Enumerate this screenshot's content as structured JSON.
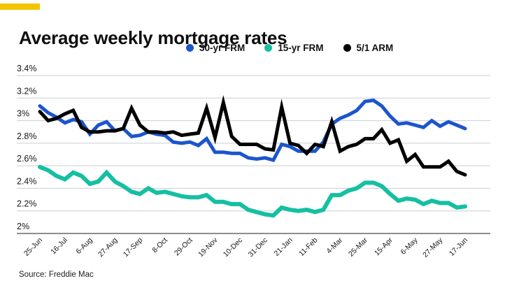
{
  "header": {
    "accent_color": "#f3c400"
  },
  "source": "Source: Freddie Mac",
  "chart_data": {
    "type": "line",
    "title": "Average weekly mortgage rates",
    "unit": "%",
    "grid": true,
    "legend_position": "top",
    "ylim": [
      2.0,
      3.4
    ],
    "y_ticks": [
      {
        "value": 3.4,
        "label": "3.4%"
      },
      {
        "value": 3.2,
        "label": "3.2%"
      },
      {
        "value": 3.0,
        "label": "3%"
      },
      {
        "value": 2.8,
        "label": "2.8%"
      },
      {
        "value": 2.6,
        "label": "2.6%"
      },
      {
        "value": 2.4,
        "label": "2.4%"
      },
      {
        "value": 2.2,
        "label": "2.2%"
      },
      {
        "value": 2.0,
        "label": "2%"
      }
    ],
    "x_tick_labels": [
      "25-Jun",
      "16-Jul",
      "6-Aug",
      "27-Aug",
      "17-Sep",
      "8-Oct",
      "29-Oct",
      "19-Nov",
      "10-Dec",
      "31-Dec",
      "21-Jan",
      "11-Feb",
      "4-Mar",
      "25-Mar",
      "15-Apr",
      "6-May",
      "27-May",
      "17-Jun"
    ],
    "points_per_tick": 3,
    "x": [
      "25-Jun",
      "2-Jul",
      "9-Jul",
      "16-Jul",
      "23-Jul",
      "30-Jul",
      "6-Aug",
      "13-Aug",
      "20-Aug",
      "27-Aug",
      "3-Sep",
      "10-Sep",
      "17-Sep",
      "24-Sep",
      "1-Oct",
      "8-Oct",
      "15-Oct",
      "22-Oct",
      "29-Oct",
      "5-Nov",
      "12-Nov",
      "19-Nov",
      "25-Nov",
      "3-Dec",
      "10-Dec",
      "17-Dec",
      "24-Dec",
      "31-Dec",
      "7-Jan",
      "14-Jan",
      "21-Jan",
      "28-Jan",
      "4-Feb",
      "11-Feb",
      "18-Feb",
      "25-Feb",
      "4-Mar",
      "11-Mar",
      "18-Mar",
      "25-Mar",
      "1-Apr",
      "8-Apr",
      "15-Apr",
      "22-Apr",
      "29-Apr",
      "6-May",
      "13-May",
      "20-May",
      "27-May",
      "3-Jun",
      "10-Jun",
      "17-Jun"
    ],
    "series": [
      {
        "name": "30-yr FRM",
        "color": "#1c55cd",
        "values": [
          3.13,
          3.07,
          3.03,
          2.98,
          3.01,
          2.99,
          2.88,
          2.96,
          2.99,
          2.91,
          2.93,
          2.86,
          2.87,
          2.9,
          2.88,
          2.87,
          2.81,
          2.8,
          2.81,
          2.78,
          2.84,
          2.72,
          2.72,
          2.71,
          2.71,
          2.67,
          2.66,
          2.67,
          2.65,
          2.79,
          2.77,
          2.73,
          2.73,
          2.73,
          2.81,
          2.97,
          3.02,
          3.05,
          3.09,
          3.17,
          3.18,
          3.13,
          3.04,
          2.97,
          2.98,
          2.96,
          2.94,
          3.0,
          2.95,
          2.99,
          2.96,
          2.93
        ]
      },
      {
        "name": "15-yr FRM",
        "color": "#16bfa2",
        "values": [
          2.59,
          2.56,
          2.51,
          2.48,
          2.54,
          2.51,
          2.44,
          2.46,
          2.54,
          2.46,
          2.42,
          2.37,
          2.35,
          2.4,
          2.36,
          2.37,
          2.35,
          2.33,
          2.32,
          2.32,
          2.34,
          2.28,
          2.28,
          2.26,
          2.26,
          2.21,
          2.19,
          2.17,
          2.16,
          2.23,
          2.21,
          2.2,
          2.21,
          2.19,
          2.21,
          2.34,
          2.34,
          2.38,
          2.4,
          2.45,
          2.45,
          2.42,
          2.35,
          2.29,
          2.31,
          2.3,
          2.26,
          2.29,
          2.27,
          2.27,
          2.23,
          2.24
        ]
      },
      {
        "name": "5/1 ARM",
        "color": "#000000",
        "values": [
          3.08,
          3.0,
          3.02,
          3.06,
          3.09,
          2.94,
          2.9,
          2.9,
          2.91,
          2.91,
          2.93,
          3.11,
          2.96,
          2.9,
          2.9,
          2.89,
          2.9,
          2.87,
          2.88,
          2.89,
          3.11,
          2.85,
          3.16,
          2.86,
          2.79,
          2.79,
          2.79,
          2.75,
          2.74,
          3.12,
          2.8,
          2.78,
          2.71,
          2.79,
          2.77,
          2.99,
          2.73,
          2.77,
          2.79,
          2.84,
          2.84,
          2.92,
          2.8,
          2.83,
          2.64,
          2.7,
          2.59,
          2.59,
          2.59,
          2.64,
          2.55,
          2.52
        ]
      }
    ]
  }
}
